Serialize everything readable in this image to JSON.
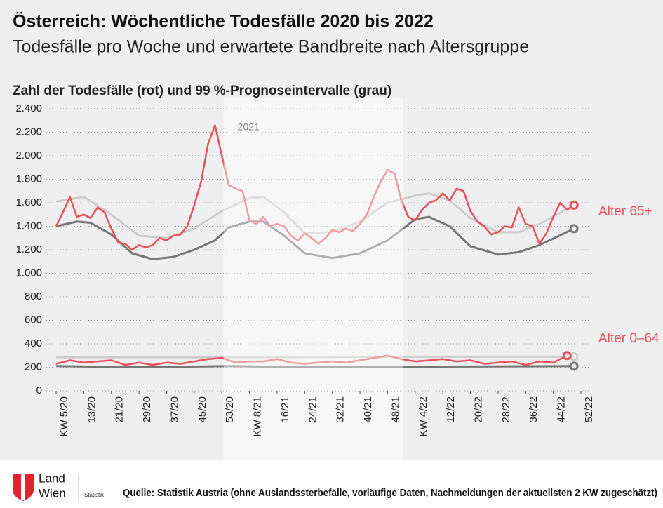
{
  "chart_data": {
    "type": "line",
    "title": "Österreich: Wöchentliche Todesfälle 2020 bis 2022",
    "subtitle": "Todesfälle pro Woche und erwartete Bandbreite nach Altersgruppe",
    "y_label": "Zahl der Todesfälle (rot) und 99 %-Prognoseintervalle (grau)",
    "xlim": [
      0,
      152
    ],
    "xticks": [
      {
        "value": 0,
        "label": "KW 5/20"
      },
      {
        "value": 8,
        "label": "13/20"
      },
      {
        "value": 16,
        "label": "21/20"
      },
      {
        "value": 24,
        "label": "29/20"
      },
      {
        "value": 32,
        "label": "37/20"
      },
      {
        "value": 40,
        "label": "45/20"
      },
      {
        "value": 48,
        "label": "53/20"
      },
      {
        "value": 56,
        "label": "KW 8/21"
      },
      {
        "value": 64,
        "label": "16/21"
      },
      {
        "value": 72,
        "label": "24/21"
      },
      {
        "value": 80,
        "label": "32/21"
      },
      {
        "value": 88,
        "label": "40/21"
      },
      {
        "value": 96,
        "label": "48/21"
      },
      {
        "value": 104,
        "label": "KW 4/22"
      },
      {
        "value": 112,
        "label": "12/22"
      },
      {
        "value": 120,
        "label": "20/22"
      },
      {
        "value": 128,
        "label": "28/22"
      },
      {
        "value": 136,
        "label": "36/22"
      },
      {
        "value": 144,
        "label": "44/22"
      },
      {
        "value": 152,
        "label": "52/22"
      }
    ],
    "ylim": [
      0,
      2400
    ],
    "yticks": [
      0,
      200,
      400,
      600,
      800,
      {
        "value": 1000,
        "label": "1.000"
      },
      {
        "value": 1200,
        "label": "1.200"
      },
      {
        "value": 1400,
        "label": "1.400"
      },
      {
        "value": 1600,
        "label": "1.600"
      },
      {
        "value": 1800,
        "label": "1.800"
      },
      {
        "value": 2000,
        "label": "2.000"
      },
      {
        "value": 2200,
        "label": "2.200"
      },
      {
        "value": 2400,
        "label": "2.400"
      }
    ],
    "grid": true,
    "shaded_region": {
      "xlim": [
        48.5,
        100.5
      ],
      "label": "2021"
    },
    "colors": {
      "observed": "#e8505b",
      "upper": "#cdcdcd",
      "lower": "#777777"
    },
    "series": [
      {
        "name": "Alter 65+",
        "observed": {
          "x": [
            0,
            2,
            4,
            6,
            8,
            10,
            12,
            14,
            16,
            18,
            20,
            22,
            24,
            26,
            28,
            30,
            32,
            34,
            36,
            38,
            40,
            42,
            44,
            46,
            48,
            50,
            52,
            54,
            56,
            58,
            60,
            62,
            64,
            66,
            68,
            70,
            72,
            74,
            76,
            78,
            80,
            82,
            84,
            86,
            88,
            90,
            92,
            94,
            96,
            98,
            100,
            102,
            104,
            106,
            108,
            110,
            112,
            114,
            116,
            118,
            120,
            122,
            124,
            126,
            128,
            130,
            132,
            134,
            136,
            138,
            140,
            142,
            144,
            146,
            148,
            150
          ],
          "values": [
            1400,
            1520,
            1650,
            1480,
            1500,
            1470,
            1560,
            1520,
            1380,
            1260,
            1250,
            1200,
            1240,
            1220,
            1240,
            1300,
            1280,
            1320,
            1330,
            1400,
            1580,
            1780,
            2100,
            2260,
            2000,
            1750,
            1720,
            1700,
            1450,
            1420,
            1480,
            1400,
            1420,
            1400,
            1320,
            1280,
            1340,
            1300,
            1250,
            1300,
            1370,
            1350,
            1380,
            1360,
            1420,
            1500,
            1650,
            1780,
            1880,
            1850,
            1620,
            1480,
            1450,
            1540,
            1600,
            1620,
            1680,
            1620,
            1720,
            1700,
            1530,
            1440,
            1400,
            1330,
            1350,
            1400,
            1390,
            1560,
            1420,
            1400,
            1250,
            1340,
            1480,
            1600,
            1540,
            1580
          ]
        },
        "upper": {
          "x": [
            0,
            8,
            16,
            24,
            32,
            40,
            48,
            56,
            60,
            66,
            72,
            80,
            88,
            96,
            104,
            108,
            114,
            120,
            128,
            134,
            140,
            150
          ],
          "values": [
            1610,
            1650,
            1500,
            1320,
            1300,
            1380,
            1530,
            1640,
            1650,
            1520,
            1340,
            1350,
            1440,
            1600,
            1660,
            1680,
            1620,
            1470,
            1350,
            1350,
            1420,
            1580
          ]
        },
        "lower": {
          "x": [
            0,
            6,
            10,
            16,
            22,
            28,
            34,
            40,
            46,
            50,
            56,
            60,
            66,
            72,
            80,
            88,
            96,
            104,
            108,
            114,
            120,
            128,
            134,
            140,
            150
          ],
          "values": [
            1400,
            1440,
            1430,
            1330,
            1170,
            1120,
            1140,
            1200,
            1280,
            1390,
            1440,
            1440,
            1320,
            1170,
            1130,
            1170,
            1280,
            1460,
            1480,
            1400,
            1230,
            1160,
            1180,
            1240,
            1380
          ]
        }
      },
      {
        "name": "Alter 0–64",
        "observed": {
          "x": [
            0,
            4,
            8,
            12,
            16,
            20,
            24,
            28,
            32,
            36,
            40,
            44,
            48,
            52,
            56,
            60,
            64,
            68,
            72,
            76,
            80,
            84,
            88,
            92,
            96,
            100,
            104,
            108,
            112,
            116,
            120,
            124,
            128,
            132,
            136,
            140,
            144,
            148
          ],
          "values": [
            230,
            260,
            240,
            250,
            260,
            220,
            240,
            220,
            240,
            230,
            250,
            270,
            280,
            240,
            250,
            250,
            270,
            240,
            230,
            240,
            250,
            240,
            260,
            280,
            300,
            270,
            250,
            260,
            270,
            250,
            260,
            230,
            240,
            250,
            220,
            250,
            240,
            300
          ]
        },
        "upper": {
          "x": [
            0,
            50,
            100,
            150
          ],
          "values": [
            285,
            285,
            290,
            290
          ]
        },
        "lower": {
          "x": [
            0,
            25,
            50,
            75,
            100,
            150
          ],
          "values": [
            210,
            200,
            210,
            200,
            205,
            210
          ]
        }
      }
    ]
  },
  "footer": {
    "logo_lines": [
      "Land",
      "Wien"
    ],
    "logo_sub": "Statistik",
    "source": "Quelle: Statistik Austria (ohne Auslandssterbefälle, vorläufige Daten, Nachmeldungen der aktuellsten 2 KW zugeschätzt)"
  }
}
